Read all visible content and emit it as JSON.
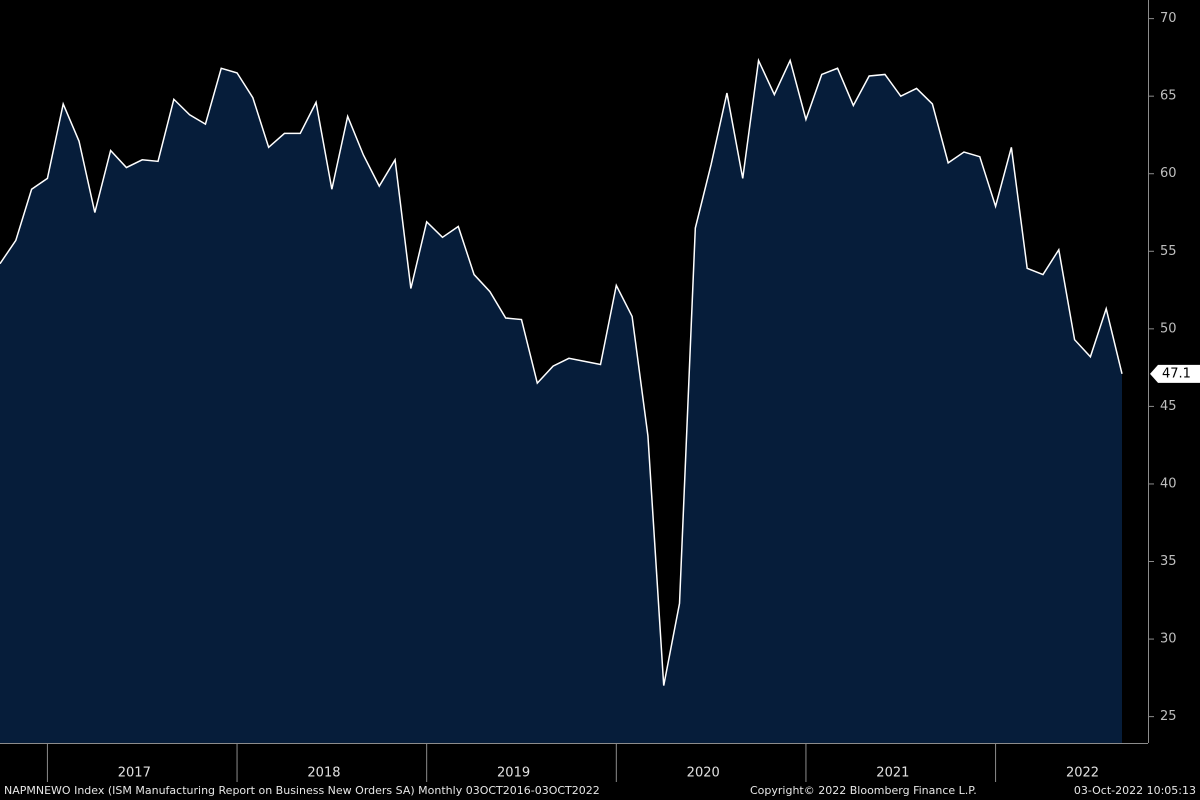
{
  "chart_data": {
    "type": "area",
    "values": [
      54.2,
      55.7,
      59.0,
      59.7,
      64.5,
      62.1,
      57.5,
      61.5,
      60.4,
      60.9,
      60.8,
      64.8,
      63.8,
      63.2,
      66.8,
      66.5,
      64.9,
      61.7,
      62.6,
      62.6,
      64.6,
      59.0,
      63.7,
      61.2,
      59.2,
      60.9,
      52.6,
      56.9,
      55.9,
      56.6,
      53.5,
      52.4,
      50.7,
      50.6,
      46.5,
      47.6,
      48.1,
      47.9,
      47.7,
      52.8,
      50.8,
      43.1,
      27.0,
      32.3,
      56.5,
      60.6,
      65.2,
      59.7,
      67.3,
      65.1,
      67.3,
      63.5,
      66.4,
      66.8,
      64.4,
      66.3,
      66.4,
      65.0,
      65.5,
      64.5,
      60.7,
      61.4,
      61.1,
      57.9,
      61.7,
      53.9,
      53.5,
      55.1,
      49.3,
      48.2,
      51.3,
      47.1
    ],
    "value_labels": [
      null,
      null,
      null,
      null,
      null,
      null,
      null,
      null,
      null,
      null,
      null,
      null,
      null,
      null,
      null,
      null,
      null,
      null,
      null,
      null,
      null,
      null,
      null,
      null,
      null,
      null,
      null,
      null,
      null,
      null,
      null,
      null,
      null,
      null,
      null,
      null,
      null,
      null,
      null,
      null,
      null,
      null,
      null,
      null,
      null,
      null,
      null,
      null,
      null,
      null,
      null,
      null,
      null,
      null,
      null,
      null,
      null,
      null,
      null,
      null,
      null,
      null,
      null,
      null,
      null,
      null,
      null,
      null,
      null,
      null,
      null,
      "47.1"
    ],
    "categories": [
      null,
      null,
      null,
      null,
      null,
      null,
      null,
      null,
      null,
      "2017",
      null,
      null,
      null,
      null,
      null,
      null,
      null,
      null,
      null,
      null,
      null,
      "2018",
      null,
      null,
      null,
      null,
      null,
      null,
      null,
      null,
      null,
      null,
      null,
      "2019",
      null,
      null,
      null,
      null,
      null,
      null,
      null,
      null,
      null,
      null,
      null,
      "2020",
      null,
      null,
      null,
      null,
      null,
      null,
      null,
      null,
      null,
      null,
      null,
      "2021",
      null,
      null,
      null,
      null,
      null,
      null,
      null,
      null,
      null,
      null,
      null,
      "2022",
      null,
      null
    ],
    "ylim": [
      23.3,
      71.2
    ],
    "yticks": [
      25,
      30,
      35,
      40,
      45,
      50,
      55,
      60,
      65,
      70
    ],
    "fill_color": "#061d3a",
    "line_color": "#ffffff",
    "source": "NAPMNEWO Index (ISM Manufacturing Report on Business New Orders SA)  Monthly 03OCT2016-03OCT2022",
    "copyright": "Copyright© 2022 Bloomberg Finance L.P.",
    "timestamp": "03-Oct-2022 10:05:13"
  }
}
